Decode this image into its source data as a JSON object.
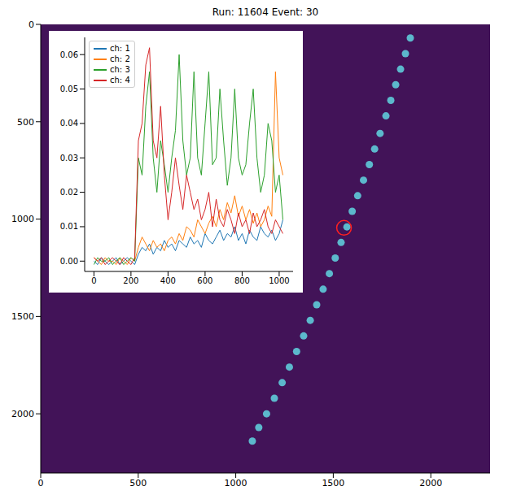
{
  "chart_data": [
    {
      "type": "scatter",
      "title": "Run: 11604 Event: 30",
      "color": "#5cb8cc",
      "x": [
        1895,
        1870,
        1845,
        1820,
        1795,
        1770,
        1740,
        1712,
        1685,
        1655,
        1625,
        1597,
        1570,
        1540,
        1510,
        1480,
        1448,
        1415,
        1382,
        1348,
        1312,
        1275,
        1238,
        1198,
        1158,
        1118,
        1085
      ],
      "values": [
        70,
        150,
        230,
        310,
        390,
        470,
        560,
        640,
        720,
        800,
        880,
        960,
        1040,
        1120,
        1200,
        1280,
        1360,
        1440,
        1520,
        1600,
        1680,
        1760,
        1840,
        1920,
        2000,
        2070,
        2140
      ],
      "highlight": {
        "x": 1555,
        "y": 1045,
        "color": "#ff2020"
      },
      "xlim": [
        0,
        2304
      ],
      "ylim": [
        0,
        2304
      ],
      "xticks": [
        0,
        500,
        1000,
        1500,
        2000
      ],
      "yticks": [
        0,
        500,
        1000,
        1500,
        2000
      ],
      "grid": false
    },
    {
      "type": "line",
      "x": [
        0,
        20,
        40,
        60,
        80,
        100,
        120,
        140,
        160,
        180,
        200,
        220,
        240,
        260,
        280,
        300,
        320,
        340,
        360,
        380,
        400,
        420,
        440,
        460,
        480,
        500,
        520,
        540,
        560,
        580,
        600,
        620,
        640,
        660,
        680,
        700,
        720,
        740,
        760,
        780,
        800,
        820,
        840,
        860,
        880,
        900,
        920,
        940,
        960,
        980,
        1000,
        1020
      ],
      "series": [
        {
          "name": "ch: 1",
          "color": "#1f77b4",
          "values": [
            0.0,
            -0.001,
            0.001,
            0.0,
            -0.001,
            0.0,
            0.001,
            -0.001,
            0.0,
            0.001,
            0.0,
            -0.001,
            0.002,
            0.004,
            0.003,
            0.005,
            0.002,
            0.004,
            0.003,
            0.006,
            0.004,
            0.005,
            0.003,
            0.006,
            0.005,
            0.004,
            0.007,
            0.005,
            0.006,
            0.004,
            0.008,
            0.006,
            0.005,
            0.007,
            0.009,
            0.006,
            0.008,
            0.007,
            0.01,
            0.006,
            0.008,
            0.005,
            0.009,
            0.007,
            0.006,
            0.01,
            0.008,
            0.007,
            0.009,
            0.006,
            0.008,
            0.012
          ]
        },
        {
          "name": "ch: 2",
          "color": "#ff7f0e",
          "values": [
            0.001,
            0.0,
            -0.001,
            0.001,
            0.0,
            0.0,
            -0.001,
            0.001,
            0.0,
            -0.001,
            0.001,
            0.0,
            0.004,
            0.007,
            0.005,
            0.003,
            0.006,
            0.004,
            0.005,
            0.003,
            0.006,
            0.007,
            0.005,
            0.008,
            0.006,
            0.01,
            0.009,
            0.007,
            0.012,
            0.01,
            0.008,
            0.011,
            0.013,
            0.01,
            0.015,
            0.012,
            0.017,
            0.014,
            0.019,
            0.013,
            0.016,
            0.012,
            0.015,
            0.011,
            0.014,
            0.01,
            0.012,
            0.016,
            0.013,
            0.055,
            0.03,
            0.025
          ]
        },
        {
          "name": "ch: 3",
          "color": "#2ca02c",
          "values": [
            -0.001,
            0.001,
            0.0,
            0.0,
            0.001,
            -0.001,
            0.0,
            0.001,
            -0.001,
            0.0,
            0.001,
            0.0,
            0.03,
            0.025,
            0.045,
            0.055,
            0.03,
            0.02,
            0.035,
            0.028,
            0.02,
            0.03,
            0.038,
            0.06,
            0.035,
            0.025,
            0.03,
            0.055,
            0.03,
            0.025,
            0.04,
            0.055,
            0.028,
            0.03,
            0.05,
            0.035,
            0.022,
            0.03,
            0.05,
            0.03,
            0.025,
            0.028,
            0.04,
            0.05,
            0.03,
            0.02,
            0.025,
            0.04,
            0.035,
            0.02,
            0.025,
            0.012
          ]
        },
        {
          "name": "ch: 4",
          "color": "#d62728",
          "values": [
            0.001,
            0.0,
            0.001,
            -0.001,
            0.0,
            0.001,
            0.0,
            -0.001,
            0.001,
            0.0,
            -0.001,
            0.001,
            0.035,
            0.04,
            0.057,
            0.062,
            0.035,
            0.03,
            0.045,
            0.025,
            0.012,
            0.02,
            0.03,
            0.022,
            0.015,
            0.025,
            0.02,
            0.015,
            0.018,
            0.012,
            0.015,
            0.02,
            0.01,
            0.018,
            0.012,
            0.01,
            0.015,
            0.012,
            0.008,
            0.014,
            0.01,
            0.012,
            0.008,
            0.014,
            0.01,
            0.012,
            0.015,
            0.01,
            0.008,
            0.012,
            0.01,
            0.008
          ]
        }
      ],
      "xlim": [
        -50,
        1075
      ],
      "ylim": [
        -0.003,
        0.065
      ],
      "xticks": [
        0,
        200,
        400,
        600,
        800,
        1000
      ],
      "yticks": [
        {
          "value": 0,
          "label": "0.00"
        },
        {
          "value": 0.01,
          "label": "0.01"
        },
        {
          "value": 0.02,
          "label": "0.02"
        },
        {
          "value": 0.03,
          "label": "0.03"
        },
        {
          "value": 0.04,
          "label": "0.04"
        },
        {
          "value": 0.05,
          "label": "0.05"
        },
        {
          "value": 0.06,
          "label": "0.06"
        }
      ],
      "legend": "upper left"
    }
  ]
}
